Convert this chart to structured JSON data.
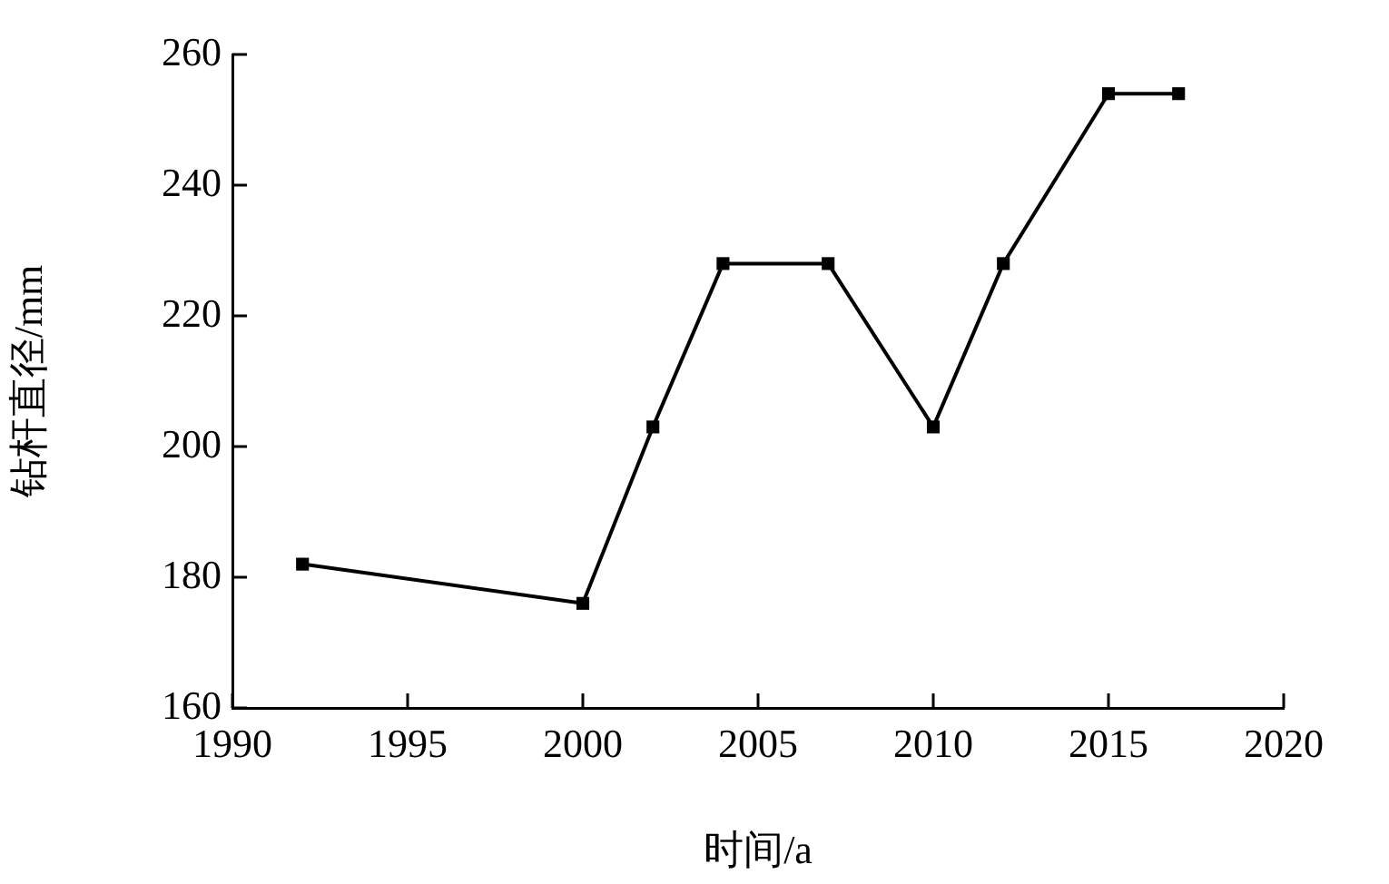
{
  "chart_data": {
    "type": "line",
    "xlabel": "时间/a",
    "ylabel": "钻杆直径/mm",
    "x": [
      1992,
      2000,
      2002,
      2004,
      2007,
      2010,
      2012,
      2015,
      2017
    ],
    "series": [
      {
        "color": "#000000",
        "values": [
          182,
          176,
          203,
          228,
          228,
          203,
          228,
          254,
          254
        ]
      }
    ],
    "xlim": [
      1990,
      2020
    ],
    "xticks": [
      1990,
      1995,
      2000,
      2005,
      2010,
      2015,
      2020
    ],
    "ylim": [
      160,
      260
    ],
    "yticks": [
      160,
      180,
      200,
      220,
      240,
      260
    ],
    "grid": false,
    "legend": false,
    "marker": "square",
    "line_style": "solid"
  }
}
